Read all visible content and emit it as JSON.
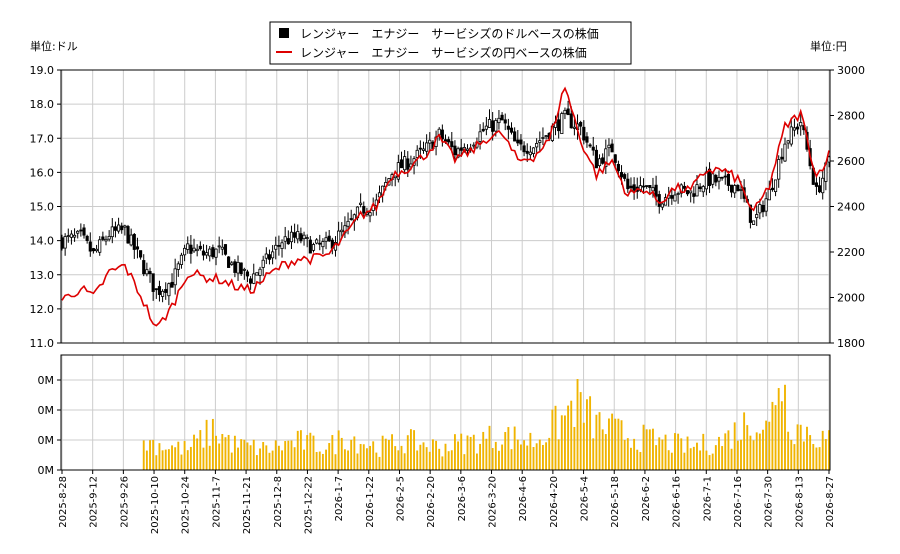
{
  "colors": {
    "candle": "#000000",
    "yen_line": "#dd0000",
    "volume": "#f0b400",
    "grid": "#cccccc"
  },
  "chart_data": {
    "type": "candlestick+line+bar",
    "legend": {
      "placement": "top-center",
      "items": [
        {
          "marker": "square",
          "color": "#000000",
          "label": "レンジャー　エナジー　サービシズのドルベースの株価"
        },
        {
          "marker": "line",
          "color": "#dd0000",
          "label": "レンジャー　エナジー　サービシズの円ベースの株価"
        }
      ]
    },
    "left_unit": "単位:ドル",
    "right_unit": "単位:円",
    "x_ticks": [
      "2025-8-28",
      "2025-9-12",
      "2025-9-26",
      "2025-10-10",
      "2025-10-24",
      "2025-11-7",
      "2025-11-21",
      "2025-12-8",
      "2025-12-22",
      "2026-1-7",
      "2026-1-22",
      "2026-2-5",
      "2026-2-20",
      "2026-3-6",
      "2026-3-20",
      "2026-4-6",
      "2026-4-20",
      "2026-5-4",
      "2026-5-18",
      "2026-6-2",
      "2026-6-16",
      "2026-7-1",
      "2026-7-16",
      "2026-7-30",
      "2026-8-13",
      "2026-8-27"
    ],
    "y_left": {
      "min": 11.0,
      "max": 19.0,
      "ticks": [
        "11.0",
        "12.0",
        "13.0",
        "14.0",
        "15.0",
        "16.0",
        "17.0",
        "18.0",
        "19.0"
      ]
    },
    "y_right": {
      "min": 1800,
      "max": 3000,
      "ticks": [
        "1800",
        "2000",
        "2200",
        "2400",
        "2600",
        "2800",
        "3000"
      ]
    },
    "volume_axis": {
      "ticks": [
        "0M",
        "0M",
        "0M",
        "0M"
      ]
    },
    "grid": true,
    "usd_close_keypoints": [
      [
        0,
        14.0
      ],
      [
        6,
        14.1
      ],
      [
        10,
        13.6
      ],
      [
        15,
        14.2
      ],
      [
        20,
        14.3
      ],
      [
        25,
        13.4
      ],
      [
        30,
        12.5
      ],
      [
        35,
        12.8
      ],
      [
        40,
        13.8
      ],
      [
        45,
        13.6
      ],
      [
        50,
        13.7
      ],
      [
        55,
        13.2
      ],
      [
        60,
        12.9
      ],
      [
        65,
        13.4
      ],
      [
        70,
        14.0
      ],
      [
        75,
        14.1
      ],
      [
        80,
        13.8
      ],
      [
        85,
        13.9
      ],
      [
        90,
        14.3
      ],
      [
        95,
        14.9
      ],
      [
        100,
        15.1
      ],
      [
        105,
        16.0
      ],
      [
        110,
        16.3
      ],
      [
        115,
        16.6
      ],
      [
        120,
        17.1
      ],
      [
        125,
        16.6
      ],
      [
        130,
        16.9
      ],
      [
        135,
        17.3
      ],
      [
        140,
        17.5
      ],
      [
        145,
        16.7
      ],
      [
        150,
        16.8
      ],
      [
        155,
        17.2
      ],
      [
        160,
        17.6
      ],
      [
        165,
        17.3
      ],
      [
        170,
        16.3
      ],
      [
        175,
        16.7
      ],
      [
        180,
        15.5
      ],
      [
        185,
        15.6
      ],
      [
        190,
        15.2
      ],
      [
        195,
        15.5
      ],
      [
        200,
        15.4
      ],
      [
        205,
        15.8
      ],
      [
        210,
        15.7
      ],
      [
        215,
        15.6
      ],
      [
        220,
        14.5
      ],
      [
        225,
        15.4
      ],
      [
        230,
        16.9
      ],
      [
        235,
        17.5
      ],
      [
        240,
        15.4
      ],
      [
        244,
        16.3
      ]
    ],
    "jpy_close_keypoints": [
      [
        0,
        1990
      ],
      [
        6,
        2040
      ],
      [
        10,
        2000
      ],
      [
        15,
        2110
      ],
      [
        20,
        2140
      ],
      [
        25,
        2010
      ],
      [
        30,
        1860
      ],
      [
        35,
        1960
      ],
      [
        40,
        2110
      ],
      [
        45,
        2090
      ],
      [
        50,
        2080
      ],
      [
        55,
        2050
      ],
      [
        60,
        2030
      ],
      [
        65,
        2090
      ],
      [
        70,
        2140
      ],
      [
        75,
        2170
      ],
      [
        80,
        2170
      ],
      [
        85,
        2190
      ],
      [
        90,
        2270
      ],
      [
        95,
        2360
      ],
      [
        100,
        2400
      ],
      [
        105,
        2540
      ],
      [
        110,
        2570
      ],
      [
        115,
        2620
      ],
      [
        120,
        2700
      ],
      [
        125,
        2610
      ],
      [
        130,
        2640
      ],
      [
        135,
        2700
      ],
      [
        140,
        2720
      ],
      [
        145,
        2600
      ],
      [
        150,
        2620
      ],
      [
        155,
        2690
      ],
      [
        160,
        2930
      ],
      [
        165,
        2690
      ],
      [
        170,
        2540
      ],
      [
        175,
        2600
      ],
      [
        180,
        2450
      ],
      [
        185,
        2480
      ],
      [
        190,
        2420
      ],
      [
        195,
        2480
      ],
      [
        200,
        2470
      ],
      [
        205,
        2560
      ],
      [
        210,
        2560
      ],
      [
        215,
        2520
      ],
      [
        220,
        2370
      ],
      [
        225,
        2490
      ],
      [
        230,
        2750
      ],
      [
        235,
        2810
      ],
      [
        240,
        2530
      ],
      [
        244,
        2630
      ]
    ],
    "volume_keypoints": [
      [
        0,
        0
      ],
      [
        25,
        0
      ],
      [
        26,
        0.25
      ],
      [
        35,
        0.2
      ],
      [
        40,
        0.18
      ],
      [
        48,
        0.35
      ],
      [
        55,
        0.22
      ],
      [
        65,
        0.18
      ],
      [
        75,
        0.25
      ],
      [
        85,
        0.2
      ],
      [
        90,
        0.3
      ],
      [
        100,
        0.2
      ],
      [
        110,
        0.25
      ],
      [
        120,
        0.2
      ],
      [
        130,
        0.25
      ],
      [
        140,
        0.3
      ],
      [
        150,
        0.25
      ],
      [
        160,
        0.45
      ],
      [
        163,
        0.6
      ],
      [
        170,
        0.4
      ],
      [
        180,
        0.3
      ],
      [
        190,
        0.25
      ],
      [
        200,
        0.2
      ],
      [
        210,
        0.25
      ],
      [
        220,
        0.45
      ],
      [
        225,
        0.35
      ],
      [
        228,
        0.9
      ],
      [
        232,
        0.4
      ],
      [
        244,
        0.25
      ]
    ]
  }
}
